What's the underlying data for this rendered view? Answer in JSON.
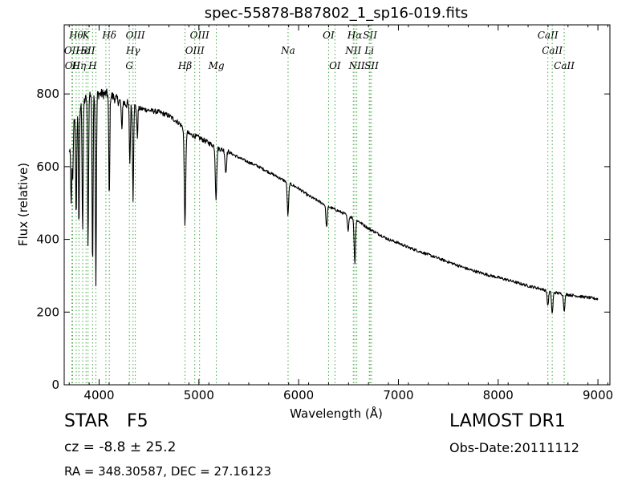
{
  "chart_data": {
    "type": "line",
    "title": "spec-55878-B87802_1_sp16-019.fits",
    "xlabel": "Wavelength (Å)",
    "ylabel": "Flux (relative)",
    "xlim": [
      3650,
      9120
    ],
    "ylim": [
      0,
      990
    ],
    "x_ticks": [
      4000,
      5000,
      6000,
      7000,
      8000,
      9000
    ],
    "y_ticks": [
      0,
      200,
      400,
      600,
      800
    ],
    "grid": false,
    "line_color": "#000000",
    "marker_color": "#44aa44",
    "continuum": [
      [
        3700,
        640
      ],
      [
        3750,
        730
      ],
      [
        3800,
        760
      ],
      [
        3850,
        780
      ],
      [
        3900,
        800
      ],
      [
        3950,
        800
      ],
      [
        4000,
        800
      ],
      [
        4050,
        800
      ],
      [
        4100,
        800
      ],
      [
        4150,
        790
      ],
      [
        4200,
        780
      ],
      [
        4250,
        775
      ],
      [
        4300,
        770
      ],
      [
        4350,
        765
      ],
      [
        4400,
        760
      ],
      [
        4450,
        758
      ],
      [
        4500,
        755
      ],
      [
        4600,
        750
      ],
      [
        4700,
        740
      ],
      [
        4800,
        720
      ],
      [
        4900,
        690
      ],
      [
        5000,
        680
      ],
      [
        5100,
        665
      ],
      [
        5200,
        650
      ],
      [
        5300,
        640
      ],
      [
        5400,
        625
      ],
      [
        5500,
        612
      ],
      [
        5600,
        600
      ],
      [
        5700,
        585
      ],
      [
        5800,
        570
      ],
      [
        5900,
        555
      ],
      [
        6000,
        540
      ],
      [
        6100,
        520
      ],
      [
        6200,
        505
      ],
      [
        6300,
        490
      ],
      [
        6400,
        478
      ],
      [
        6500,
        465
      ],
      [
        6600,
        450
      ],
      [
        6700,
        430
      ],
      [
        6800,
        415
      ],
      [
        6900,
        400
      ],
      [
        7000,
        390
      ],
      [
        7100,
        378
      ],
      [
        7200,
        368
      ],
      [
        7300,
        358
      ],
      [
        7400,
        348
      ],
      [
        7500,
        338
      ],
      [
        7600,
        328
      ],
      [
        7700,
        318
      ],
      [
        7800,
        310
      ],
      [
        7900,
        302
      ],
      [
        8000,
        295
      ],
      [
        8100,
        288
      ],
      [
        8200,
        280
      ],
      [
        8300,
        272
      ],
      [
        8400,
        266
      ],
      [
        8500,
        258
      ],
      [
        8600,
        252
      ],
      [
        8700,
        248
      ],
      [
        8800,
        244
      ],
      [
        8900,
        240
      ],
      [
        9000,
        236
      ]
    ],
    "absorption_lines": [
      [
        3720,
        180
      ],
      [
        3735,
        150
      ],
      [
        3770,
        290
      ],
      [
        3798,
        320
      ],
      [
        3835,
        350
      ],
      [
        3889,
        410
      ],
      [
        3934,
        470
      ],
      [
        3968,
        520
      ],
      [
        4102,
        290
      ],
      [
        4227,
        80
      ],
      [
        4308,
        160
      ],
      [
        4340,
        250
      ],
      [
        4383,
        80
      ],
      [
        4861,
        260
      ],
      [
        5172,
        140
      ],
      [
        5270,
        60
      ],
      [
        5893,
        90
      ],
      [
        6280,
        60
      ],
      [
        6495,
        40
      ],
      [
        6563,
        120
      ],
      [
        8498,
        40
      ],
      [
        8542,
        60
      ],
      [
        8662,
        45
      ]
    ],
    "line_markers": [
      {
        "x": 3727,
        "labels": [
          {
            "text": "OII",
            "row": 2
          }
        ]
      },
      {
        "x": 3734,
        "labels": [
          {
            "text": "OII",
            "row": 3
          }
        ]
      },
      {
        "x": 3770,
        "labels": [
          {
            "text": "Hθ",
            "row": 1
          }
        ]
      },
      {
        "x": 3798,
        "labels": [
          {
            "text": "Hη",
            "row": 3
          }
        ]
      },
      {
        "x": 3835,
        "labels": [
          {
            "text": "Hε",
            "row": 2
          }
        ]
      },
      {
        "x": 3869,
        "labels": [
          {
            "text": "K",
            "row": 1
          }
        ]
      },
      {
        "x": 3889,
        "labels": [
          {
            "text": "SII",
            "row": 2
          }
        ]
      },
      {
        "x": 3934,
        "labels": [
          {
            "text": "H",
            "row": 3
          }
        ]
      },
      {
        "x": 3968,
        "labels": []
      },
      {
        "x": 4068,
        "labels": []
      },
      {
        "x": 4102,
        "labels": [
          {
            "text": "Hδ",
            "row": 1
          }
        ]
      },
      {
        "x": 4303,
        "labels": [
          {
            "text": "G",
            "row": 3
          }
        ]
      },
      {
        "x": 4340,
        "labels": [
          {
            "text": "Hγ",
            "row": 2
          }
        ]
      },
      {
        "x": 4363,
        "labels": [
          {
            "text": "OIII",
            "row": 1
          }
        ]
      },
      {
        "x": 4861,
        "labels": [
          {
            "text": "Hβ",
            "row": 3
          }
        ]
      },
      {
        "x": 4959,
        "labels": [
          {
            "text": "OIII",
            "row": 2
          }
        ]
      },
      {
        "x": 5007,
        "labels": [
          {
            "text": "OIII",
            "row": 1
          }
        ]
      },
      {
        "x": 5175,
        "labels": [
          {
            "text": "Mg",
            "row": 3
          }
        ]
      },
      {
        "x": 5894,
        "labels": [
          {
            "text": "Na",
            "row": 2
          }
        ]
      },
      {
        "x": 6300,
        "labels": [
          {
            "text": "OI",
            "row": 1
          }
        ]
      },
      {
        "x": 6364,
        "labels": [
          {
            "text": "OI",
            "row": 3
          }
        ]
      },
      {
        "x": 6548,
        "labels": [
          {
            "text": "NII",
            "row": 2
          }
        ]
      },
      {
        "x": 6563,
        "labels": [
          {
            "text": "Hα",
            "row": 1
          }
        ]
      },
      {
        "x": 6583,
        "labels": [
          {
            "text": "NII",
            "row": 3
          }
        ]
      },
      {
        "x": 6708,
        "labels": [
          {
            "text": "Li",
            "row": 2
          }
        ]
      },
      {
        "x": 6716,
        "labels": [
          {
            "text": "SII",
            "row": 1
          }
        ]
      },
      {
        "x": 6731,
        "labels": [
          {
            "text": "SII",
            "row": 3
          }
        ]
      },
      {
        "x": 8498,
        "labels": [
          {
            "text": "CaII",
            "row": 1
          }
        ]
      },
      {
        "x": 8542,
        "labels": [
          {
            "text": "CaII",
            "row": 2
          }
        ]
      },
      {
        "x": 8662,
        "labels": [
          {
            "text": "CaII",
            "row": 3
          }
        ]
      }
    ]
  },
  "footer": {
    "class": "STAR",
    "subclass": "F5",
    "survey": "LAMOST DR1",
    "cz": "cz = -8.8 ± 25.2",
    "obs_date": "Obs-Date:20111112",
    "radec": "RA = 348.30587, DEC = 27.16123"
  }
}
